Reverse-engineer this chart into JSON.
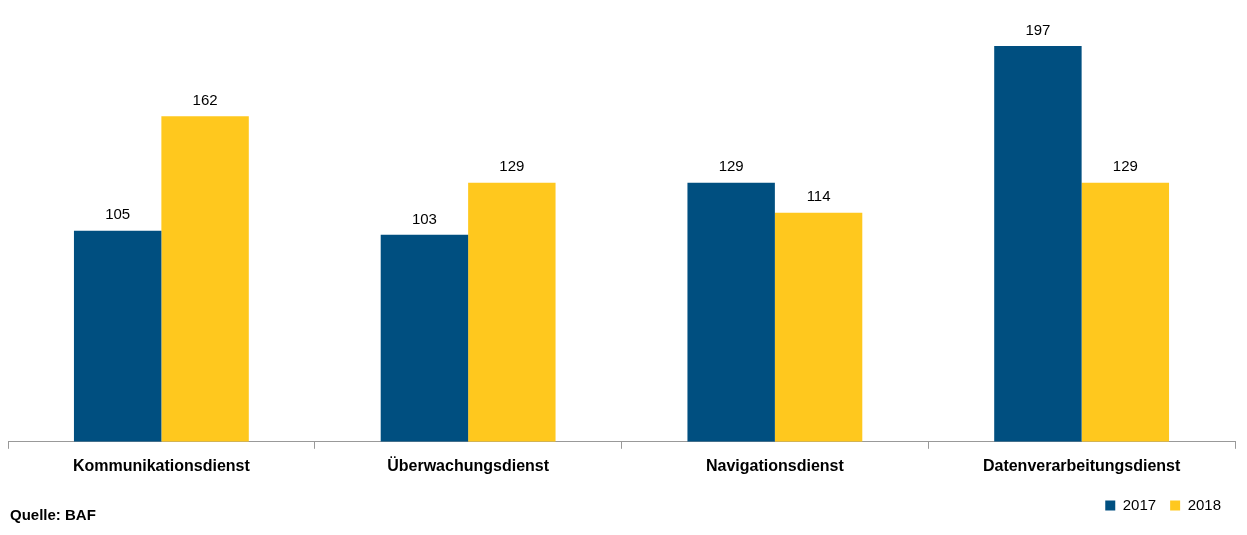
{
  "chart_data": {
    "type": "bar",
    "categories": [
      "Kommunikationsdienst",
      "Überwachungsdienst",
      "Navigationsdienst",
      "Datenverarbeitungsdienst"
    ],
    "series": [
      {
        "name": "2017",
        "color": "#004f80",
        "values": [
          105,
          103,
          129,
          197
        ]
      },
      {
        "name": "2018",
        "color": "#ffc81e",
        "values": [
          162,
          129,
          114,
          129
        ]
      }
    ],
    "data_labels": true,
    "legend": "bottom right",
    "annotations": [
      "Quelle: BAF"
    ]
  }
}
